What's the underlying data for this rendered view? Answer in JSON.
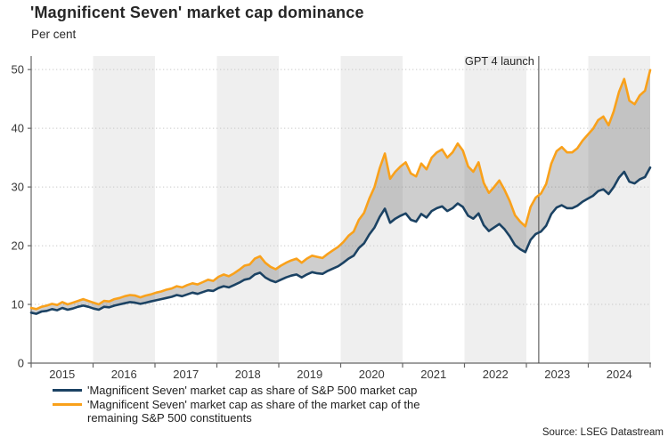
{
  "header": {
    "title": "'Magnificent Seven' market cap dominance",
    "subtitle": "Per cent"
  },
  "source": "Source: LSEG Datastream",
  "colors": {
    "blue_series": "#1b4263",
    "orange_series": "#f9a11b",
    "band": "#efefef",
    "fill_between": "rgba(115,115,115,0.35)",
    "grid": "#c9c9c9",
    "axis": "#666666",
    "text": "#383838",
    "annotation_line": "#444444"
  },
  "chart_data": {
    "type": "line",
    "title": "'Magnificent Seven' market cap dominance",
    "ylabel": "Per cent",
    "x_unit": "monthly",
    "x_start": "2015-01",
    "x_end": "2024-12",
    "x_axis_range": [
      2015,
      2025
    ],
    "ylim": [
      0,
      52.3
    ],
    "yticks": [
      0,
      10,
      20,
      30,
      40,
      50
    ],
    "xticks": [
      2015,
      2016,
      2017,
      2018,
      2019,
      2020,
      2021,
      2022,
      2023,
      2024
    ],
    "shaded_years": [
      2016,
      2018,
      2020,
      2022,
      2024
    ],
    "grid": "dotted-horizontal",
    "legend_position": "bottom-left",
    "fill_between_series": true,
    "annotation": {
      "label": "GPT 4 launch",
      "x": 2023.2
    },
    "series": [
      {
        "name": "'Magnificent Seven' market cap as share of S&P 500 market cap",
        "color": "#1b4263",
        "values": [
          8.6,
          8.4,
          8.8,
          8.9,
          9.2,
          9.0,
          9.4,
          9.1,
          9.3,
          9.6,
          9.8,
          9.6,
          9.3,
          9.1,
          9.6,
          9.5,
          9.8,
          10.0,
          10.2,
          10.4,
          10.3,
          10.1,
          10.3,
          10.5,
          10.7,
          10.9,
          11.1,
          11.3,
          11.6,
          11.4,
          11.7,
          12.0,
          11.8,
          12.1,
          12.4,
          12.3,
          12.8,
          13.1,
          12.9,
          13.3,
          13.7,
          14.2,
          14.4,
          15.1,
          15.4,
          14.6,
          14.1,
          13.8,
          14.2,
          14.6,
          14.9,
          15.1,
          14.6,
          15.1,
          15.5,
          15.3,
          15.2,
          15.7,
          16.1,
          16.5,
          17.1,
          17.8,
          18.3,
          19.6,
          20.4,
          21.9,
          23.1,
          24.9,
          26.3,
          23.9,
          24.6,
          25.1,
          25.5,
          24.4,
          24.1,
          25.4,
          24.8,
          25.9,
          26.4,
          26.7,
          25.9,
          26.4,
          27.2,
          26.6,
          25.1,
          24.6,
          25.5,
          23.5,
          22.5,
          23.1,
          23.7,
          22.8,
          21.6,
          20.1,
          19.4,
          18.9,
          21.0,
          22.0,
          22.4,
          23.4,
          25.4,
          26.5,
          26.9,
          26.4,
          26.4,
          26.8,
          27.5,
          28.0,
          28.5,
          29.3,
          29.6,
          28.8,
          30.0,
          31.6,
          32.6,
          30.9,
          30.6,
          31.3,
          31.7,
          33.3
        ]
      },
      {
        "name": "'Magnificent Seven' market cap as share of the market cap of the remaining S&P 500 constituents",
        "color": "#f9a11b",
        "values": [
          9.4,
          9.2,
          9.6,
          9.8,
          10.1,
          9.9,
          10.4,
          10.0,
          10.3,
          10.6,
          10.9,
          10.6,
          10.3,
          10.0,
          10.6,
          10.5,
          10.9,
          11.1,
          11.4,
          11.6,
          11.5,
          11.2,
          11.5,
          11.7,
          12.0,
          12.2,
          12.5,
          12.7,
          13.1,
          12.9,
          13.3,
          13.6,
          13.4,
          13.8,
          14.2,
          14.0,
          14.7,
          15.1,
          14.8,
          15.3,
          15.9,
          16.6,
          16.8,
          17.8,
          18.2,
          17.1,
          16.4,
          16.0,
          16.6,
          17.1,
          17.5,
          17.8,
          17.1,
          17.8,
          18.3,
          18.1,
          17.9,
          18.6,
          19.2,
          19.8,
          20.6,
          21.7,
          22.4,
          24.4,
          25.6,
          28.0,
          30.0,
          33.2,
          35.7,
          31.4,
          32.6,
          33.5,
          34.2,
          32.3,
          31.8,
          34.0,
          33.0,
          35.0,
          35.9,
          36.4,
          35.0,
          35.9,
          37.4,
          36.2,
          33.5,
          32.6,
          34.2,
          30.7,
          29.0,
          30.0,
          31.1,
          29.5,
          27.6,
          25.2,
          24.1,
          23.3,
          26.6,
          28.2,
          28.9,
          30.5,
          34.0,
          36.1,
          36.8,
          35.9,
          35.9,
          36.6,
          37.9,
          38.9,
          39.9,
          41.4,
          42.0,
          40.5,
          42.9,
          46.2,
          48.4,
          44.7,
          44.1,
          45.6,
          46.4,
          49.9
        ]
      }
    ]
  }
}
